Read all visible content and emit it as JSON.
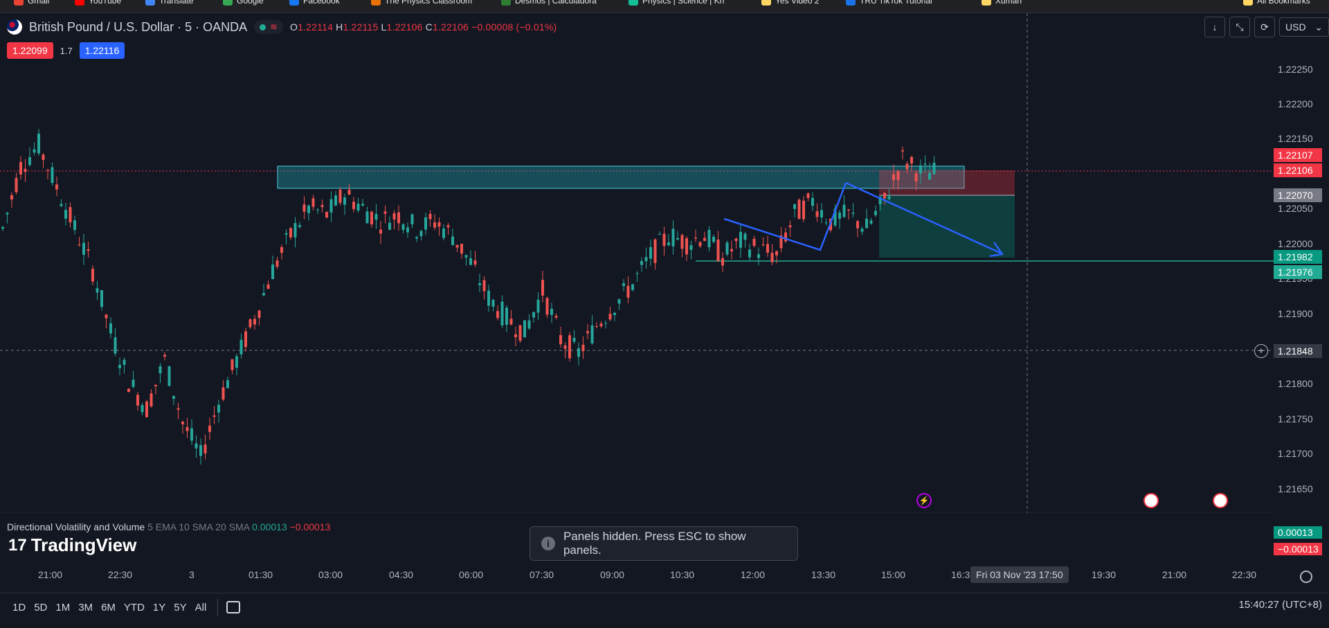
{
  "bookmarks": [
    {
      "label": "Gmail",
      "color": "#ea4335"
    },
    {
      "label": "YouTube",
      "color": "#ff0000"
    },
    {
      "label": "Translate",
      "color": "#4285f4"
    },
    {
      "label": "Google",
      "color": "#34a853"
    },
    {
      "label": "Facebook",
      "color": "#1877f2"
    },
    {
      "label": "The Physics Classroom",
      "color": "#e8710a"
    },
    {
      "label": "Desmos | Calculadora",
      "color": "#2e7d32"
    },
    {
      "label": "Physics | Science | Kh",
      "color": "#14bf96"
    },
    {
      "label": "Yes Video 2",
      "color": "#fdd663"
    },
    {
      "label": "TRU TikTok Tutorial",
      "color": "#1a73e8"
    },
    {
      "label": "Xuman",
      "color": "#fdd663"
    },
    {
      "label": "All Bookmarks",
      "color": "#fdd663"
    }
  ],
  "header": {
    "symbol": "British Pound / U.S. Dollar · 5 · OANDA",
    "o_label": "O",
    "o_value": "1.22114",
    "h_label": "H",
    "h_value": "1.22115",
    "l_label": "L",
    "l_value": "1.22106",
    "c_label": "C",
    "c_value": "1.22106",
    "change": "−0.00008 (−0.01%)",
    "bid": "1.22099",
    "spread": "1.7",
    "ask": "1.22116",
    "currency": "USD"
  },
  "toast": {
    "text": "Panels hidden. Press ESC to show panels."
  },
  "indicator": {
    "name": "Directional Volatility and Volume",
    "params": "5 EMA 10 SMA 20 SMA",
    "v1": "0.00013",
    "v2": "−0.00013"
  },
  "logo": {
    "text": "TradingView"
  },
  "price_labels": {
    "last_1": "1.22107",
    "last_2": "1.22106",
    "level_gray": "1.22070",
    "level_green_1": "1.21982",
    "level_green_2": "1.21976",
    "crosshair": "1.21848"
  },
  "time_cross": "Fri 03 Nov '23   17:50",
  "ranges": [
    "1D",
    "5D",
    "1M",
    "3M",
    "6M",
    "YTD",
    "1Y",
    "5Y",
    "All"
  ],
  "clock": "15:40:27 (UTC+8)",
  "chart_data": {
    "type": "candlestick",
    "title": "British Pound / U.S. Dollar · 5 · OANDA",
    "ylim": [
      1.2162,
      1.2228
    ],
    "y_ticks": [
      "1.22250",
      "1.22200",
      "1.22150",
      "1.22050",
      "1.22000",
      "1.21950",
      "1.21900",
      "1.21800",
      "1.21750",
      "1.21700",
      "1.21650"
    ],
    "x_ticks": [
      "21:00",
      "22:30",
      "3",
      "01:30",
      "03:00",
      "04:30",
      "06:00",
      "07:30",
      "09:00",
      "10:30",
      "12:00",
      "13:30",
      "15:00",
      "16:3",
      "19:30",
      "21:00",
      "22:30"
    ],
    "colors": {
      "up": "#26a69a",
      "down": "#ef5350"
    },
    "series": [
      {
        "values": [
          1.2203,
          1.2212,
          1.2215,
          1.2209,
          1.2203,
          1.2197,
          1.2188,
          1.2181,
          1.2177,
          1.2184,
          1.2175,
          1.217,
          1.2178,
          1.2184,
          1.219,
          1.2197,
          1.2202,
          1.2206,
          1.2205,
          1.2208,
          1.2206,
          1.2204,
          1.2205,
          1.2203,
          1.2204,
          1.2202,
          1.2198,
          1.2193,
          1.219,
          1.2188,
          1.2194,
          1.2187,
          1.2185,
          1.2189,
          1.2192,
          1.2195,
          1.2199,
          1.2202,
          1.2201,
          1.2202,
          1.2199,
          1.2201,
          1.22,
          1.2199,
          1.2205,
          1.2207,
          1.2204,
          1.2205,
          1.2203,
          1.2207,
          1.2213,
          1.2211
        ]
      }
    ]
  }
}
